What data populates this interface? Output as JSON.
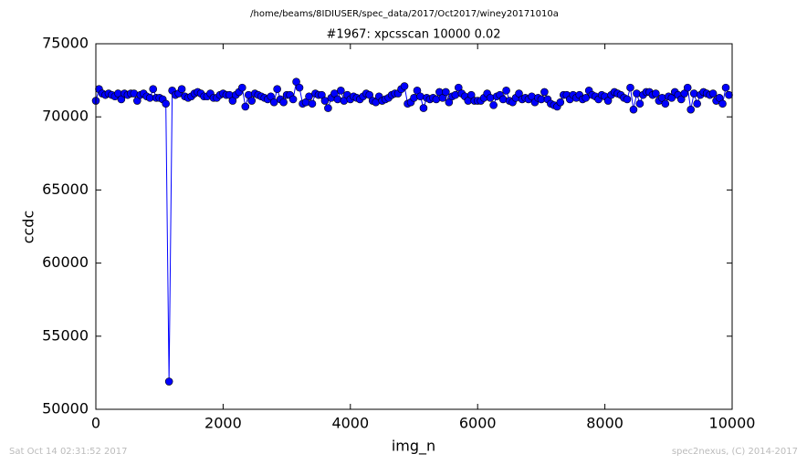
{
  "chart_data": {
    "type": "line",
    "suptitle": "/home/beams/8IDIUSER/spec_data/2017/Oct2017/winey20171010a",
    "title": "#1967: xpcsscan 10000 0.02",
    "xlabel": "img_n",
    "ylabel": "ccdc",
    "footer_left": "Sat Oct 14 02:31:52 2017",
    "footer_right": "spec2nexus, (C) 2014-2017",
    "x": [
      0,
      50,
      100,
      150,
      200,
      250,
      300,
      350,
      400,
      450,
      500,
      550,
      600,
      650,
      700,
      750,
      800,
      850,
      900,
      950,
      1000,
      1050,
      1100,
      1150,
      1200,
      1250,
      1300,
      1350,
      1400,
      1450,
      1500,
      1550,
      1600,
      1650,
      1700,
      1750,
      1800,
      1850,
      1900,
      1950,
      2000,
      2050,
      2100,
      2150,
      2200,
      2250,
      2300,
      2350,
      2400,
      2450,
      2500,
      2550,
      2600,
      2650,
      2700,
      2750,
      2800,
      2850,
      2900,
      2950,
      3000,
      3050,
      3100,
      3150,
      3200,
      3250,
      3300,
      3350,
      3400,
      3450,
      3500,
      3550,
      3600,
      3650,
      3700,
      3750,
      3800,
      3850,
      3900,
      3950,
      4000,
      4050,
      4100,
      4150,
      4200,
      4250,
      4300,
      4350,
      4400,
      4450,
      4500,
      4550,
      4600,
      4650,
      4700,
      4750,
      4800,
      4850,
      4900,
      4950,
      5000,
      5050,
      5100,
      5150,
      5200,
      5250,
      5300,
      5350,
      5400,
      5450,
      5500,
      5550,
      5600,
      5650,
      5700,
      5750,
      5800,
      5850,
      5900,
      5950,
      6000,
      6050,
      6100,
      6150,
      6200,
      6250,
      6300,
      6350,
      6400,
      6450,
      6500,
      6550,
      6600,
      6650,
      6700,
      6750,
      6800,
      6850,
      6900,
      6950,
      7000,
      7050,
      7100,
      7150,
      7200,
      7250,
      7300,
      7350,
      7400,
      7450,
      7500,
      7550,
      7600,
      7650,
      7700,
      7750,
      7800,
      7850,
      7900,
      7950,
      8000,
      8050,
      8100,
      8150,
      8200,
      8250,
      8300,
      8350,
      8400,
      8450,
      8500,
      8550,
      8600,
      8650,
      8700,
      8750,
      8800,
      8850,
      8900,
      8950,
      9000,
      9050,
      9100,
      9150,
      9200,
      9250,
      9300,
      9350,
      9400,
      9450,
      9500,
      9550,
      9600,
      9650,
      9700,
      9750,
      9800,
      9850,
      9900,
      9950
    ],
    "series": [
      {
        "name": "ccdc",
        "color": "#0000ff",
        "values": [
          71100,
          71900,
          71600,
          71500,
          71600,
          71500,
          71400,
          71600,
          71200,
          71600,
          71500,
          71600,
          71600,
          71100,
          71500,
          71600,
          71400,
          71300,
          71900,
          71300,
          71300,
          71200,
          70900,
          51900,
          71800,
          71500,
          71600,
          71900,
          71400,
          71300,
          71400,
          71600,
          71700,
          71600,
          71400,
          71400,
          71600,
          71300,
          71300,
          71500,
          71600,
          71500,
          71500,
          71100,
          71500,
          71700,
          72000,
          70700,
          71500,
          71100,
          71600,
          71500,
          71400,
          71300,
          71200,
          71400,
          71000,
          71900,
          71200,
          71000,
          71500,
          71500,
          71200,
          72400,
          72000,
          70900,
          71000,
          71400,
          70900,
          71600,
          71500,
          71500,
          71100,
          70600,
          71300,
          71600,
          71200,
          71800,
          71100,
          71500,
          71200,
          71400,
          71300,
          71200,
          71400,
          71600,
          71500,
          71100,
          71000,
          71400,
          71100,
          71200,
          71300,
          71500,
          71600,
          71600,
          71900,
          72100,
          70900,
          71000,
          71300,
          71800,
          71400,
          70600,
          71300,
          71200,
          71300,
          71200,
          71700,
          71300,
          71700,
          71000,
          71400,
          71500,
          72000,
          71600,
          71400,
          71100,
          71500,
          71100,
          71100,
          71100,
          71300,
          71600,
          71300,
          70800,
          71400,
          71500,
          71200,
          71800,
          71100,
          71000,
          71300,
          71600,
          71200,
          71300,
          71200,
          71400,
          71000,
          71300,
          71200,
          71700,
          71200,
          70900,
          70800,
          70700,
          71000,
          71500,
          71500,
          71200,
          71500,
          71300,
          71500,
          71200,
          71300,
          71800,
          71500,
          71400,
          71200,
          71500,
          71400,
          71100,
          71500,
          71700,
          71600,
          71500,
          71300,
          71200,
          72000,
          70500,
          71600,
          70900,
          71500,
          71700,
          71700,
          71500,
          71600,
          71100,
          71300,
          70900,
          71400,
          71300,
          71700,
          71500,
          71200,
          71600,
          72000,
          70500,
          71600,
          70900,
          71500,
          71700,
          71600,
          71500,
          71600,
          71100,
          71300,
          70900,
          72000,
          71500
        ]
      }
    ],
    "xlim": [
      0,
      10000
    ],
    "xticks": [
      0,
      2000,
      4000,
      6000,
      8000,
      10000
    ],
    "ylim": [
      50000,
      75000
    ],
    "yticks": [
      50000,
      55000,
      60000,
      65000,
      70000,
      75000
    ]
  }
}
